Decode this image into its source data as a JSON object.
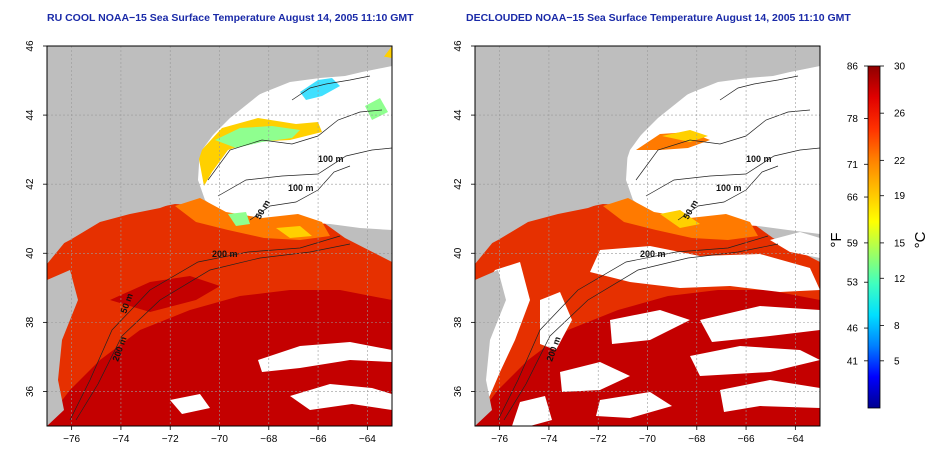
{
  "panels": [
    {
      "title": "RU COOL NOAA−15 Sea Surface Temperature August 14, 2005 11:10 GMT",
      "contour_labels": [
        "100 m",
        "100 m",
        "50 m",
        "200 m",
        "50 m",
        "200 m"
      ]
    },
    {
      "title": "DECLOUDED NOAA−15 Sea Surface Temperature August 14, 2005 11:10 GMT",
      "contour_labels": [
        "100 m",
        "100 m",
        "50 m",
        "200 m",
        "200 m"
      ]
    }
  ],
  "axes": {
    "x_ticks": [
      "−76",
      "−74",
      "−72",
      "−70",
      "−68",
      "−66",
      "−64"
    ],
    "y_ticks": [
      "36",
      "38",
      "40",
      "42",
      "44",
      "46"
    ]
  },
  "colorbar": {
    "fahrenheit_label": "°F",
    "celsius_label": "°C",
    "fahrenheit_ticks": [
      "86",
      "78",
      "71",
      "66",
      "59",
      "53",
      "46",
      "41"
    ],
    "celsius_ticks": [
      "30",
      "26",
      "22",
      "19",
      "15",
      "12",
      "8",
      "5"
    ],
    "colors": [
      "#00008f",
      "#0000ff",
      "#0080ff",
      "#00e0ff",
      "#40ffbf",
      "#a0ff60",
      "#ffff00",
      "#ffc000",
      "#ff8000",
      "#ff3000",
      "#e00000",
      "#8f0000"
    ]
  },
  "map_colors": {
    "land": "#bebebe",
    "cloud": "#ffffff",
    "water_warm": "#e63000",
    "water_hot": "#c40000",
    "water_mid": "#ff7a00",
    "water_cool": "#ffd000",
    "water_cold": "#8fff8f",
    "water_cyan": "#40e0ff"
  }
}
